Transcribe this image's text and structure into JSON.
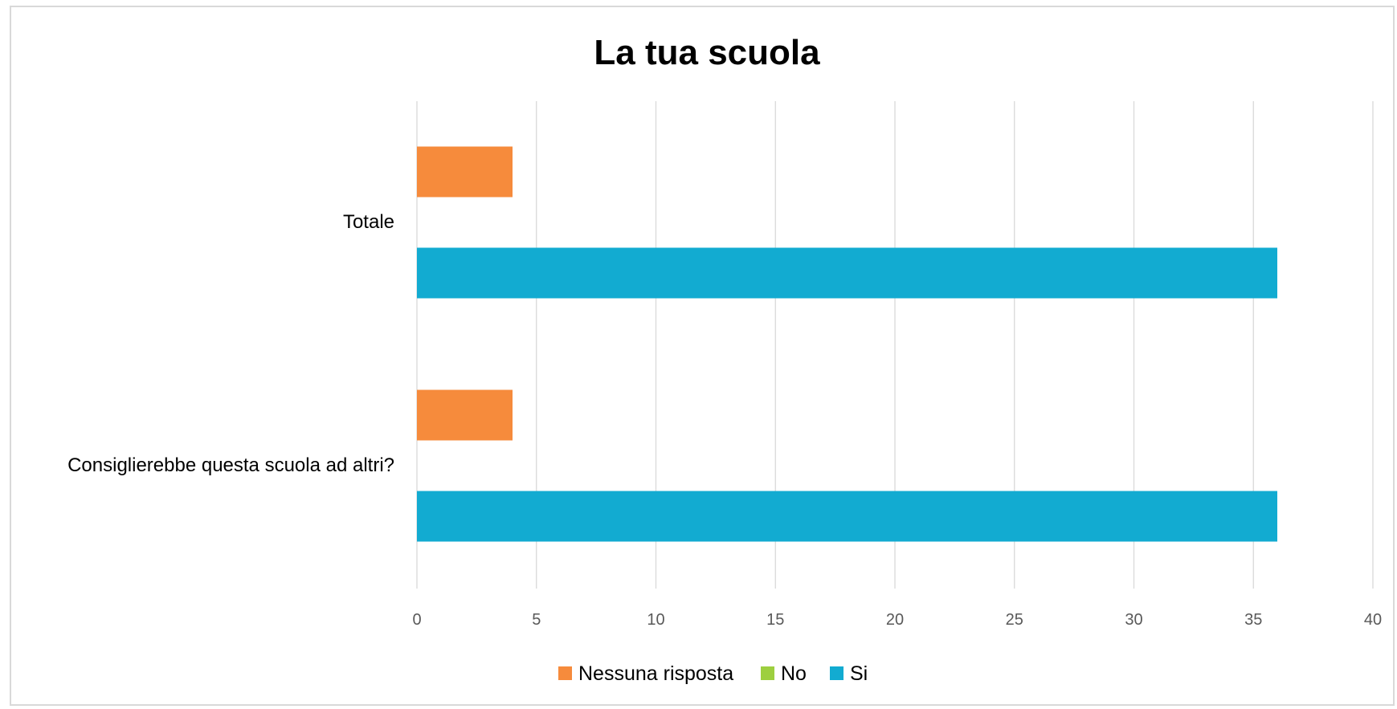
{
  "chart_data": {
    "type": "bar",
    "orientation": "horizontal",
    "title": "La tua scuola",
    "categories": [
      "Totale",
      "Consiglierebbe questa scuola ad altri?"
    ],
    "series": [
      {
        "name": "Nessuna risposta",
        "color": "#f68b3c",
        "values": [
          4,
          4
        ]
      },
      {
        "name": "No",
        "color": "#9dcf3f",
        "values": [
          0,
          0
        ]
      },
      {
        "name": "Si",
        "color": "#12abd1",
        "values": [
          36,
          36
        ]
      }
    ],
    "xlim": [
      0,
      40
    ],
    "xticks": [
      "0",
      "5",
      "10",
      "15",
      "20",
      "25",
      "30",
      "35",
      "40"
    ],
    "grid": true,
    "legend_position": "bottom"
  }
}
